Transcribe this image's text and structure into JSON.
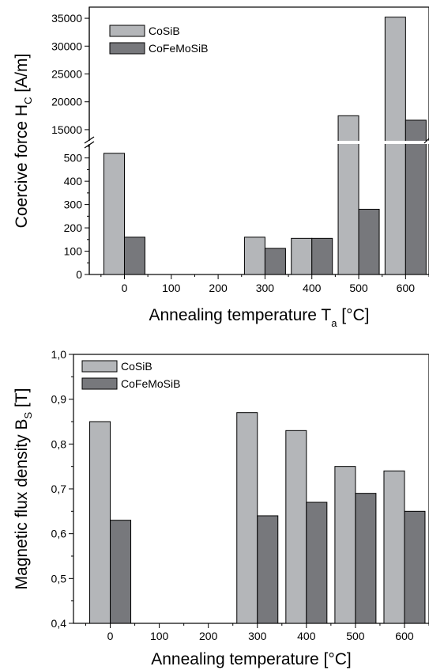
{
  "chart_data": [
    {
      "type": "bar",
      "x": [
        0,
        100,
        200,
        300,
        400,
        500,
        600
      ],
      "x_tick_labels": [
        "0",
        "100",
        "200",
        "300",
        "400",
        "500",
        "600"
      ],
      "xlim": [
        -75,
        650
      ],
      "ylim_lower": [
        0,
        560
      ],
      "ylim_upper": [
        13000,
        37000
      ],
      "y_break": true,
      "y_ticks_lower": [
        "0",
        "100",
        "200",
        "300",
        "400",
        "500"
      ],
      "y_ticks_upper": [
        "15000",
        "20000",
        "25000",
        "30000",
        "35000"
      ],
      "series": [
        {
          "name": "CoSiB",
          "color": "#b4b6b9",
          "x": [
            0,
            300,
            400,
            500,
            600
          ],
          "values": [
            520,
            160,
            155,
            17500,
            35200
          ]
        },
        {
          "name": "CoFeMoSiB",
          "color": "#77787c",
          "x": [
            0,
            300,
            400,
            500,
            600
          ],
          "values": [
            160,
            112,
            155,
            280,
            16700
          ]
        }
      ],
      "ylabel_main": "Coercive force H",
      "ylabel_sub": "C",
      "ylabel_unit": " [A/m]",
      "xlabel_main": "Annealing temperature T",
      "xlabel_sub": "a",
      "xlabel_unit": " [°C]",
      "legend_position": "top-left",
      "grid": false
    },
    {
      "type": "bar",
      "x": [
        0,
        100,
        200,
        300,
        400,
        500,
        600
      ],
      "x_tick_labels": [
        "0",
        "100",
        "200",
        "300",
        "400",
        "500",
        "600"
      ],
      "xlim": [
        -75,
        650
      ],
      "ylim": [
        0.4,
        1.0
      ],
      "y_ticks": [
        "0,4",
        "0,5",
        "0,6",
        "0,7",
        "0,8",
        "0,9",
        "1,0"
      ],
      "series": [
        {
          "name": "CoSiB",
          "color": "#b4b6b9",
          "x": [
            0,
            300,
            400,
            500,
            600
          ],
          "values": [
            0.85,
            0.87,
            0.83,
            0.75,
            0.74
          ]
        },
        {
          "name": "CoFeMoSiB",
          "color": "#77787c",
          "x": [
            0,
            300,
            400,
            500,
            600
          ],
          "values": [
            0.63,
            0.64,
            0.67,
            0.69,
            0.65
          ]
        }
      ],
      "ylabel_main": "Magnetic flux density B",
      "ylabel_sub": "S",
      "ylabel_unit": " [T]",
      "xlabel": "Annealing temperature [°C]",
      "legend_position": "top-left",
      "grid": false
    }
  ]
}
